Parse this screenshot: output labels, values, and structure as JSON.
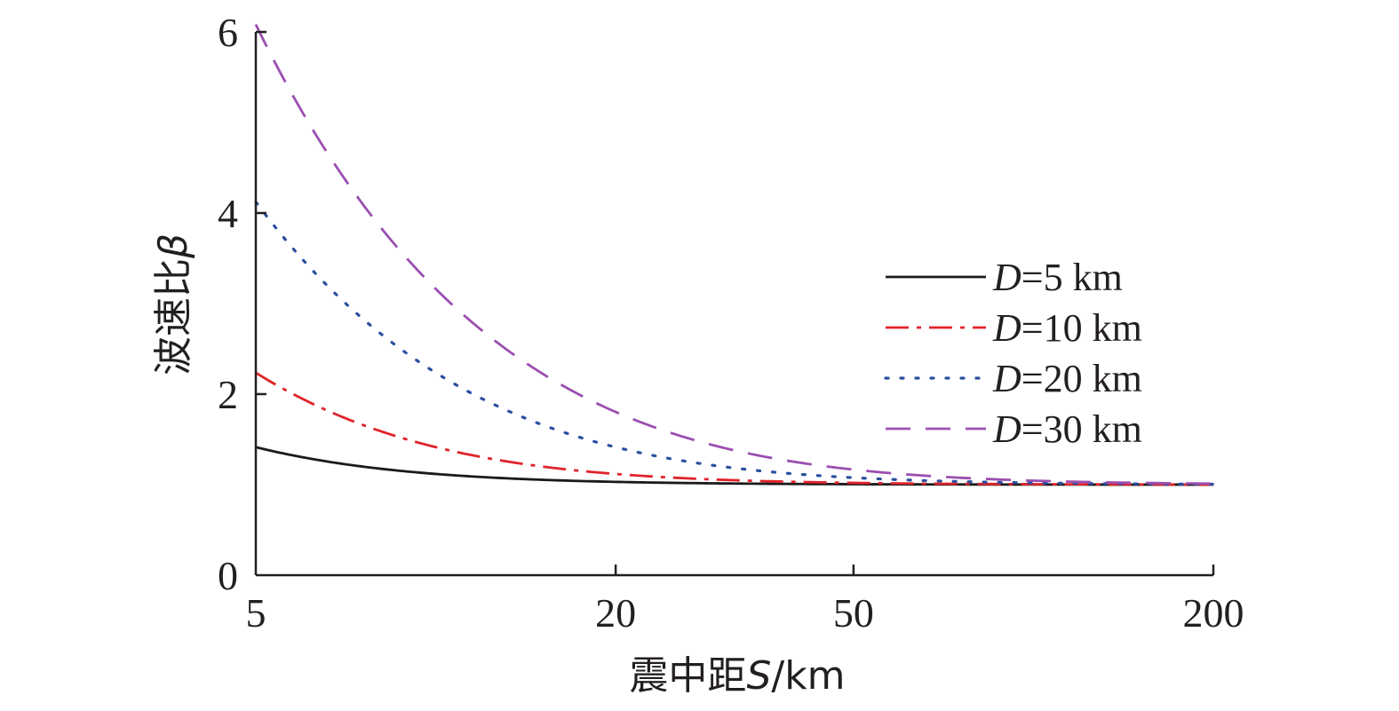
{
  "chart_data": {
    "type": "line",
    "xscale": "log",
    "xlim": [
      5,
      200
    ],
    "ylim": [
      0,
      6
    ],
    "xticks": [
      5,
      20,
      50,
      200
    ],
    "yticks": [
      0,
      2,
      4,
      6
    ],
    "xlabel": {
      "prefix": "震中距",
      "var": "S",
      "unit": "/km"
    },
    "ylabel": {
      "prefix": "波速比",
      "var": "β"
    },
    "legend_position": "right",
    "grid": false,
    "series": [
      {
        "name": "D=5 km",
        "name_var": "D",
        "name_rest": "=5 km",
        "color": "#1a1a1a",
        "dash": "solid",
        "depth": 5
      },
      {
        "name": "D=10 km",
        "name_var": "D",
        "name_rest": "=10 km",
        "color": "#e0242b",
        "dash": "dashdot",
        "depth": 10
      },
      {
        "name": "D=20 km",
        "name_var": "D",
        "name_rest": "=20 km",
        "color": "#2b4fa0",
        "dash": "dotted",
        "depth": 20
      },
      {
        "name": "D=30 km",
        "name_var": "D",
        "name_rest": "=30 km",
        "color": "#9b4fb0",
        "dash": "dashed",
        "depth": 30
      }
    ]
  }
}
